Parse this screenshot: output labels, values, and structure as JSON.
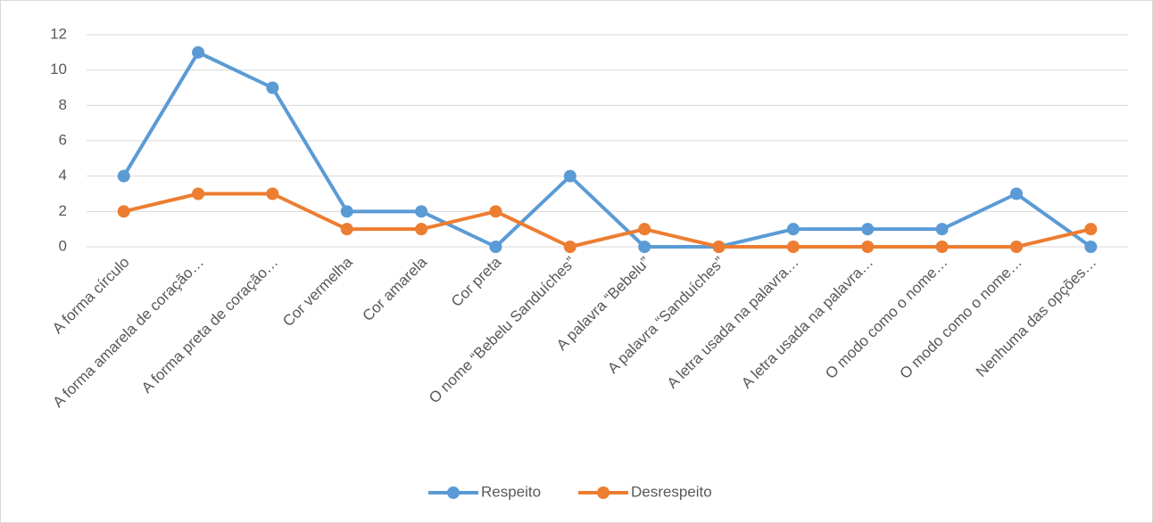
{
  "chart_data": {
    "type": "line",
    "categories": [
      "A forma círculo",
      "A forma amarela de coração…",
      "A forma preta de coração…",
      "Cor vermelha",
      "Cor amarela",
      "Cor preta",
      "O nome “Bebelu Sanduíches”",
      "A palavra “Bebelu”",
      "A palavra “Sanduíches”",
      "A letra usada na palavra…",
      "A letra usada na palavra…",
      "O modo como o nome…",
      "O modo como o nome…",
      "Nenhuma das opções…"
    ],
    "series": [
      {
        "name": "Respeito",
        "color": "#5b9bd5",
        "values": [
          4,
          11,
          9,
          2,
          2,
          0,
          4,
          0,
          0,
          1,
          1,
          1,
          3,
          0
        ]
      },
      {
        "name": "Desrespeito",
        "color": "#ed7d31",
        "values": [
          2,
          3,
          3,
          1,
          1,
          2,
          0,
          1,
          0,
          0,
          0,
          0,
          0,
          1
        ]
      }
    ],
    "ylim": [
      0,
      12
    ],
    "yticks": [
      0,
      2,
      4,
      6,
      8,
      10,
      12
    ],
    "grid": true,
    "legend": "bottom"
  }
}
